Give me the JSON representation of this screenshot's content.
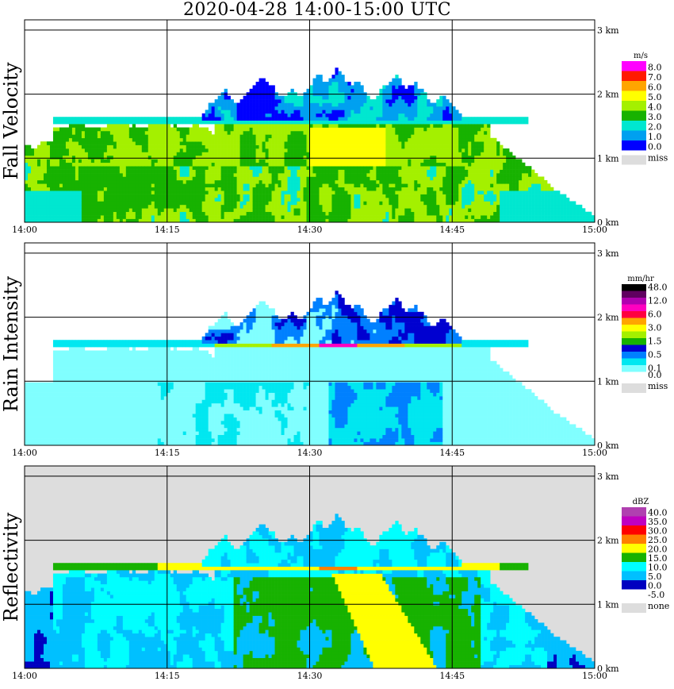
{
  "title": "2020-04-28   14:00-15:00 UTC",
  "x_axis": {
    "ticks": [
      "14:00",
      "14:15",
      "14:30",
      "14:45",
      "15:00"
    ],
    "range_minutes": [
      0,
      60
    ]
  },
  "y_axis": {
    "ticks": [
      "0 km",
      "1 km",
      "2 km",
      "3 km"
    ],
    "range_km": [
      0,
      3.5
    ]
  },
  "panels": [
    {
      "id": "fall-velocity",
      "label": "Fall Velocity",
      "unit": "m/s",
      "background": "#ffffff",
      "legend": [
        {
          "label": "8.0",
          "color": "#ff00ff"
        },
        {
          "label": "7.0",
          "color": "#ff1a00"
        },
        {
          "label": "6.0",
          "color": "#ffa500"
        },
        {
          "label": "5.0",
          "color": "#ffff00"
        },
        {
          "label": "4.0",
          "color": "#a4f000"
        },
        {
          "label": "3.0",
          "color": "#17b200"
        },
        {
          "label": "2.0",
          "color": "#00e7d0"
        },
        {
          "label": "1.0",
          "color": "#00a0f0"
        },
        {
          "label": "0.0",
          "color": "#0000ff"
        }
      ],
      "missing": {
        "label": "miss",
        "color": "#dddddd"
      }
    },
    {
      "id": "rain-intensity",
      "label": "Rain Intensity",
      "unit": "mm/hr",
      "background": "#ffffff",
      "legend": [
        {
          "label": "48.0",
          "color": "#000000"
        },
        {
          "label": "",
          "color": "#600060"
        },
        {
          "label": "12.0",
          "color": "#b000b0"
        },
        {
          "label": "",
          "color": "#ff00c0"
        },
        {
          "label": "6.0",
          "color": "#ff0040"
        },
        {
          "label": "",
          "color": "#ffa500"
        },
        {
          "label": "3.0",
          "color": "#ffff00"
        },
        {
          "label": "",
          "color": "#a4f000"
        },
        {
          "label": "1.5",
          "color": "#17b200"
        },
        {
          "label": "",
          "color": "#0000d0"
        },
        {
          "label": "0.5",
          "color": "#0080ff"
        },
        {
          "label": "",
          "color": "#00e7f0"
        },
        {
          "label": "0.1",
          "color": "#80ffff"
        },
        {
          "label": "0.0",
          "color": "#ffffff"
        }
      ],
      "missing": {
        "label": "miss",
        "color": "#dddddd"
      }
    },
    {
      "id": "reflectivity",
      "label": "Reflectivity",
      "unit": "dBZ",
      "background": "#dddddd",
      "legend": [
        {
          "label": "40.0",
          "color": "#b040b0"
        },
        {
          "label": "35.0",
          "color": "#c000c0"
        },
        {
          "label": "30.0",
          "color": "#ff0000"
        },
        {
          "label": "25.0",
          "color": "#ff8000"
        },
        {
          "label": "20.0",
          "color": "#ffff00"
        },
        {
          "label": "15.0",
          "color": "#17b200"
        },
        {
          "label": "10.0",
          "color": "#00ffff"
        },
        {
          "label": "5.0",
          "color": "#00c0ff"
        },
        {
          "label": "0.0",
          "color": "#0000c0"
        },
        {
          "label": "-5.0",
          "color": "#ffffff"
        }
      ],
      "missing": {
        "label": "none",
        "color": "#dddddd"
      }
    }
  ]
}
